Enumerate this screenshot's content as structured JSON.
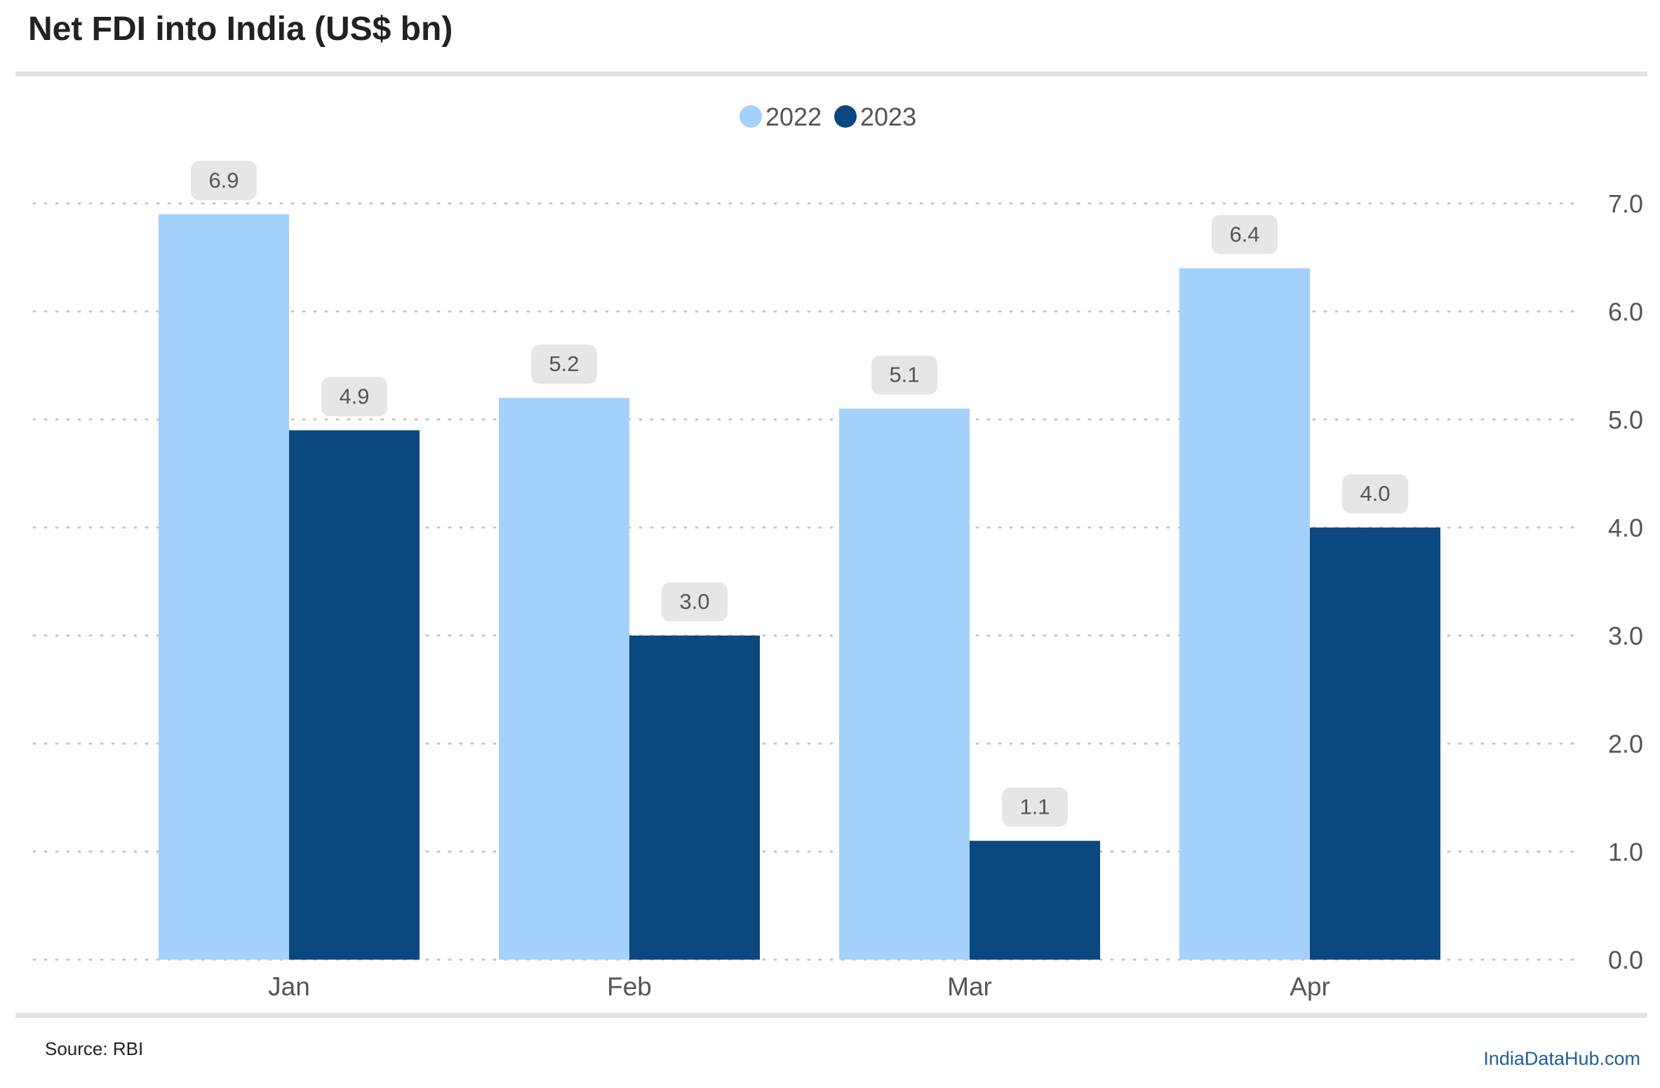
{
  "header": {
    "title": "Net FDI into India (US$ bn)"
  },
  "footer": {
    "source": "Source: RBI",
    "brand": "IndiaDataHub.com"
  },
  "colors": {
    "2022": "#a3d1fb",
    "2023": "#0b4880",
    "grid": "#c4c4c4",
    "label_bg": "#e6e6e6",
    "text": "#555555"
  },
  "chart_data": {
    "type": "bar",
    "title": "Net FDI into India (US$ bn)",
    "categories": [
      "Jan",
      "Feb",
      "Mar",
      "Apr"
    ],
    "series": [
      {
        "name": "2022",
        "values": [
          6.9,
          5.2,
          5.1,
          6.4
        ],
        "labels": [
          "6.9",
          "5.2",
          "5.1",
          "6.4"
        ]
      },
      {
        "name": "2023",
        "values": [
          4.9,
          3.0,
          1.1,
          4.0
        ],
        "labels": [
          "4.9",
          "3.0",
          "1.1",
          "4.0"
        ]
      }
    ],
    "yticks": [
      "0.0",
      "1.0",
      "2.0",
      "3.0",
      "4.0",
      "5.0",
      "6.0",
      "7.0"
    ],
    "ylim": [
      0,
      7
    ],
    "y_axis_side": "right",
    "grid": true,
    "legend_position": "top-center",
    "xlabel": "",
    "ylabel": ""
  }
}
